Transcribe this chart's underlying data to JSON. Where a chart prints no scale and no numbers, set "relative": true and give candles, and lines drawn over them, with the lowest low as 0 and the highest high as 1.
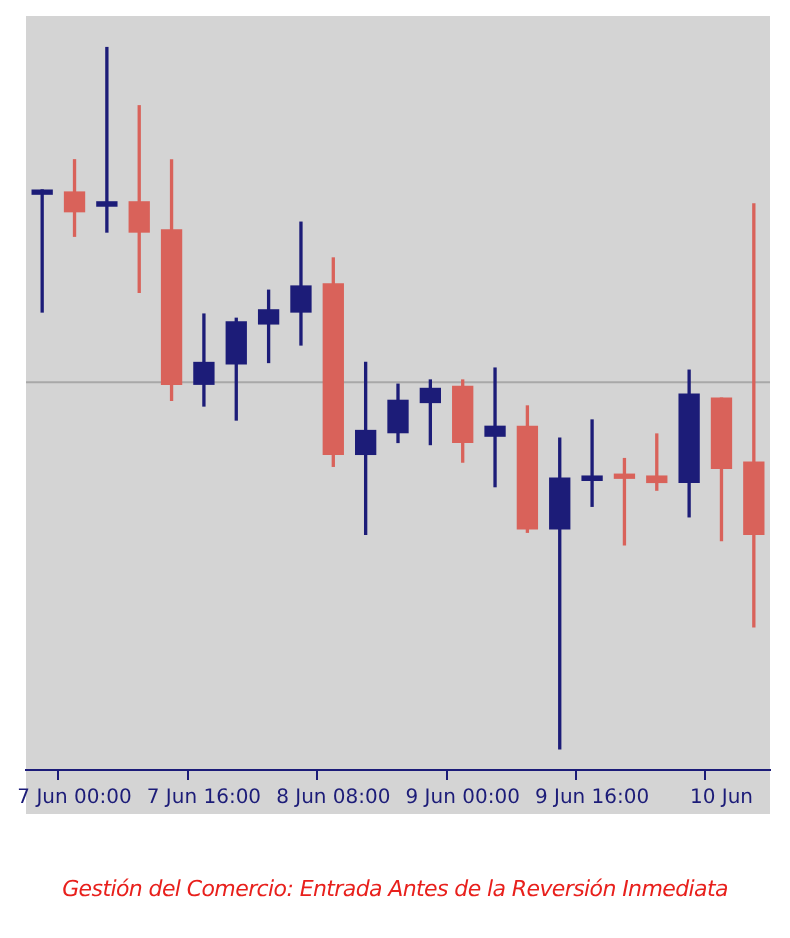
{
  "chart_data": {
    "type": "candlestick",
    "relative": true,
    "categories": [
      null,
      "7 Jun 00:00",
      null,
      null,
      null,
      "7 Jun 16:00",
      null,
      null,
      null,
      "8 Jun 08:00",
      null,
      null,
      null,
      "9 Jun 00:00",
      null,
      null,
      null,
      "9 Jun 16:00",
      null,
      null,
      null,
      "10 Jun",
      null
    ],
    "ohlc": [
      [
        0.791,
        0.797,
        0.623,
        0.794
      ],
      [
        0.794,
        0.84,
        0.731,
        0.766
      ],
      [
        0.774,
        1.0,
        0.737,
        0.78
      ],
      [
        0.78,
        0.917,
        0.651,
        0.737
      ],
      [
        0.74,
        0.84,
        0.497,
        0.52
      ],
      [
        0.52,
        0.62,
        0.489,
        0.551
      ],
      [
        0.549,
        0.614,
        0.469,
        0.609
      ],
      [
        0.606,
        0.654,
        0.551,
        0.626
      ],
      [
        0.623,
        0.751,
        0.576,
        0.66
      ],
      [
        0.663,
        0.7,
        0.403,
        0.42
      ],
      [
        0.42,
        0.551,
        0.306,
        0.454
      ],
      [
        0.451,
        0.52,
        0.437,
        0.497
      ],
      [
        0.494,
        0.526,
        0.434,
        0.514
      ],
      [
        0.517,
        0.526,
        0.409,
        0.437
      ],
      [
        0.446,
        0.543,
        0.374,
        0.46
      ],
      [
        0.46,
        0.489,
        0.309,
        0.314
      ],
      [
        0.314,
        0.443,
        0.0,
        0.386
      ],
      [
        0.383,
        0.469,
        0.346,
        0.389
      ],
      [
        0.389,
        0.414,
        0.291,
        0.386
      ],
      [
        0.389,
        0.449,
        0.369,
        0.38
      ],
      [
        0.38,
        0.54,
        0.331,
        0.506
      ],
      [
        0.5,
        0.5,
        0.297,
        0.4
      ],
      [
        0.409,
        0.777,
        0.174,
        0.306
      ]
    ],
    "colors": [
      "#1c1c78",
      "#d9625a",
      "#1c1c78",
      "#d9625a",
      "#d9625a",
      "#1c1c78",
      "#1c1c78",
      "#1c1c78",
      "#1c1c78",
      "#d9625a",
      "#1c1c78",
      "#1c1c78",
      "#1c1c78",
      "#d9625a",
      "#1c1c78",
      "#d9625a",
      "#1c1c78",
      "#1c1c78",
      "#d9625a",
      "#d9625a",
      "#1c1c78",
      "#d9625a",
      "#d9625a"
    ],
    "ref_lines": [
      {
        "axis": "y",
        "value": 0.523,
        "color": "#a8a8a8"
      }
    ],
    "annotations": [
      "Gestión del Comercio: Entrada Antes de la Reversión Inmediata"
    ],
    "legend": false,
    "grid": false
  }
}
